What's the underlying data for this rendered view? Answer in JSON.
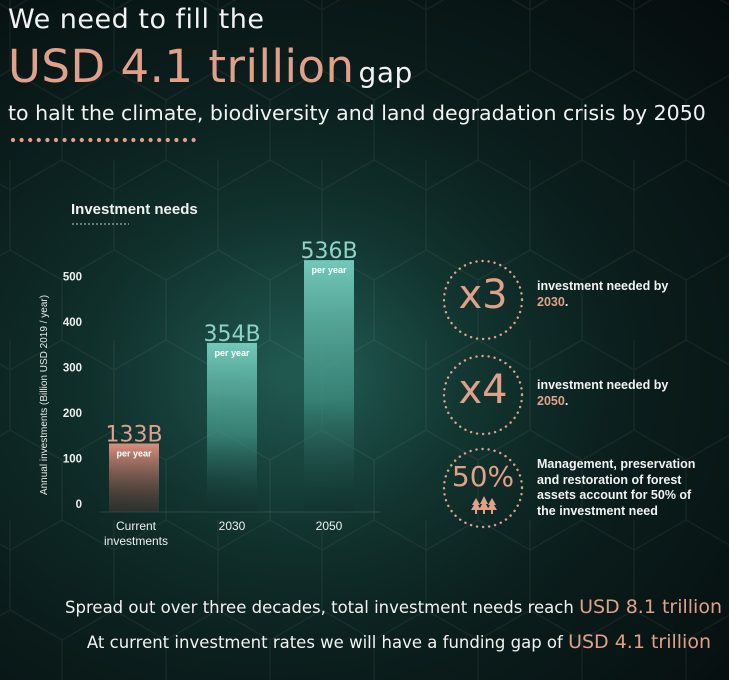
{
  "header": {
    "line1": "We need to fill the",
    "amount": "USD 4.1 trillion",
    "gap_word": "gap",
    "line3": "to halt the climate, biodiversity and land degradation crisis by 2050"
  },
  "chart_data": {
    "type": "bar",
    "title": "Investment needs",
    "ylabel": "Annual investments (Billion USD 2019 / year)",
    "categories": [
      "Current investments",
      "2030",
      "2050"
    ],
    "values": [
      133,
      354,
      536
    ],
    "data_labels": [
      "133B",
      "354B",
      "536B"
    ],
    "unit_note": "per year",
    "ylim": [
      0,
      560
    ],
    "yticks": [
      0,
      100,
      200,
      300,
      400,
      500
    ],
    "grid": false,
    "colors": [
      "#d9907e",
      "#6cc3b4",
      "#6cc3b4"
    ]
  },
  "stats": [
    {
      "value": "x3",
      "text": "investment needed by ",
      "highlight": "2030",
      "suffix": "."
    },
    {
      "value": "x4",
      "text": "investment needed by ",
      "highlight": "2050",
      "suffix": "."
    },
    {
      "value": "50%",
      "text": "Management, preservation and restoration of forest assets account for 50% of the investment need",
      "highlight": "",
      "suffix": "",
      "icon": "trees-icon"
    }
  ],
  "footer": {
    "line1_text": "Spread out over three decades, total investment needs reach",
    "line1_value": "USD 8.1 trillion",
    "line2_text": "At current investment rates we will have a funding gap of",
    "line2_value": "USD 4.1 trillion"
  },
  "colors": {
    "accent": "#e0a08a",
    "teal": "#6cc3b4",
    "background": "#0a1c1b"
  }
}
